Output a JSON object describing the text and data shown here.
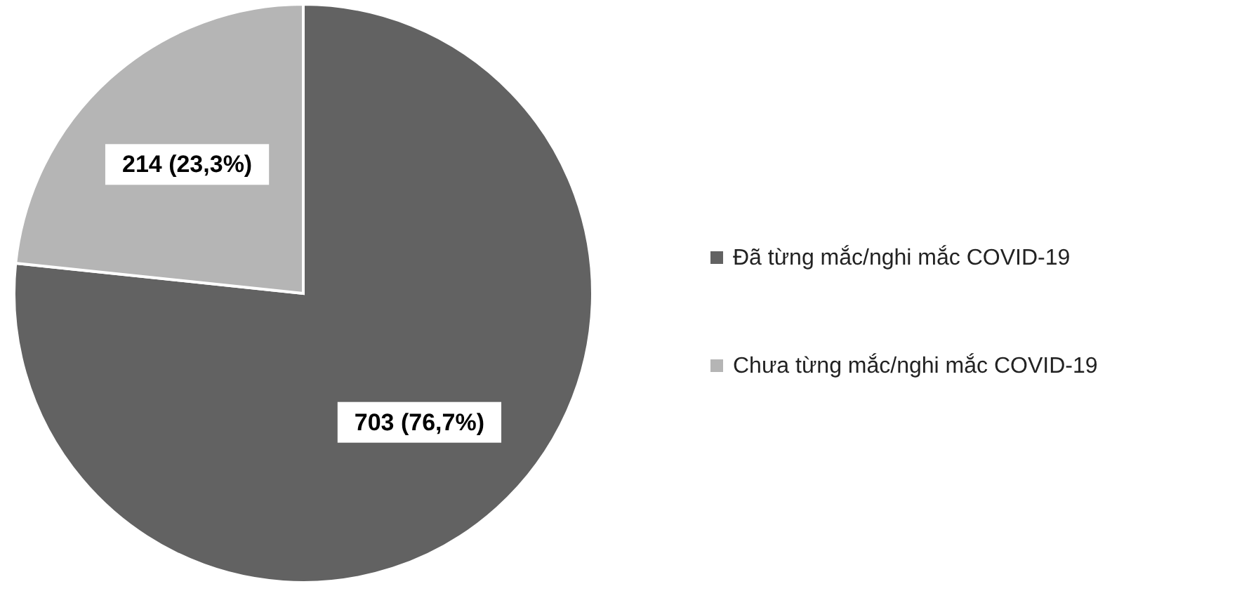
{
  "chart_data": {
    "type": "pie",
    "categories": [
      "Đã từng mắc/nghi mắc COVID-19",
      "Chưa từng mắc/nghi mắc COVID-19"
    ],
    "values": [
      703,
      214
    ],
    "colors": [
      "#626262",
      "#b5b5b5"
    ],
    "value_labels": [
      "703 (76,7%)",
      "214 (23,3%)"
    ],
    "legend": "right"
  }
}
